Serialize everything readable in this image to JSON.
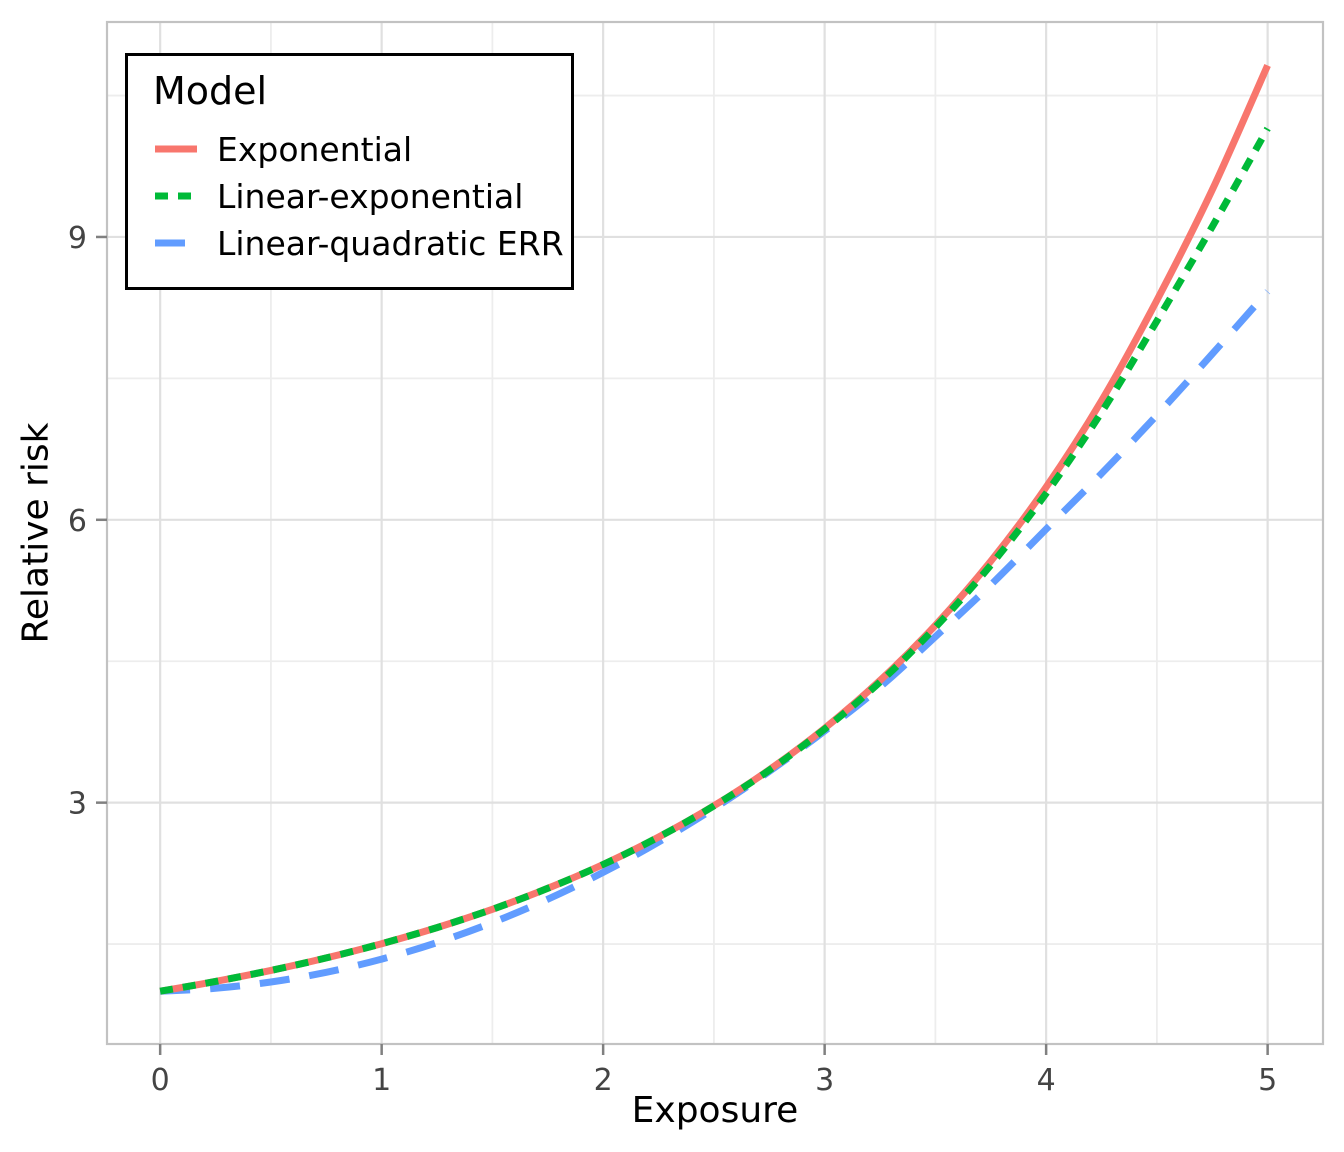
{
  "chart_data": {
    "type": "line",
    "xlabel": "Exposure",
    "ylabel": "Relative risk",
    "legend_title": "Model",
    "legend_position": "top-left-inside",
    "grid": true,
    "xlim": [
      -0.24,
      5.25
    ],
    "ylim": [
      0.44,
      11.28
    ],
    "x_major_ticks": [
      0,
      1,
      2,
      3,
      4,
      5
    ],
    "x_minor_ticks": [
      0.5,
      1.5,
      2.5,
      3.5,
      4.5
    ],
    "y_major_ticks": [
      3,
      6,
      9
    ],
    "y_minor_ticks": [
      1.5,
      4.5,
      7.5,
      10.5
    ],
    "x": [
      0,
      0.25,
      0.5,
      0.75,
      1,
      1.25,
      1.5,
      1.75,
      2,
      2.25,
      2.5,
      2.75,
      3,
      3.25,
      3.5,
      3.75,
      4,
      4.25,
      4.5,
      4.75,
      5
    ],
    "series": [
      {
        "name": "Exponential",
        "color": "#F8766D",
        "dash": "solid",
        "values": [
          1.0,
          1.104,
          1.221,
          1.353,
          1.504,
          1.675,
          1.869,
          2.091,
          2.344,
          2.634,
          2.967,
          3.349,
          3.789,
          4.296,
          4.882,
          5.561,
          6.347,
          7.262,
          8.329,
          9.5,
          10.82
        ]
      },
      {
        "name": "Linear-exponential",
        "color": "#00BA38",
        "dash": "dotted",
        "values": [
          1.0,
          1.104,
          1.221,
          1.353,
          1.504,
          1.675,
          1.869,
          2.091,
          2.344,
          2.634,
          2.965,
          3.344,
          3.78,
          4.28,
          4.86,
          5.52,
          6.28,
          7.14,
          8.11,
          9.11,
          10.15
        ]
      },
      {
        "name": "Linear-quadratic ERR",
        "color": "#619CFF",
        "dash": "dashed",
        "values": [
          1.0,
          1.031,
          1.098,
          1.201,
          1.34,
          1.516,
          1.728,
          1.976,
          2.26,
          2.581,
          2.938,
          3.331,
          3.76,
          4.226,
          4.76,
          5.31,
          5.9,
          6.49,
          7.11,
          7.76,
          8.42
        ]
      }
    ]
  },
  "colors": {
    "grid_major": "#E0E0E0",
    "grid_minor": "#EDEDED",
    "panel_border": "#C2C2C2",
    "tick_mark": "#808080",
    "tick_label": "#444444"
  }
}
